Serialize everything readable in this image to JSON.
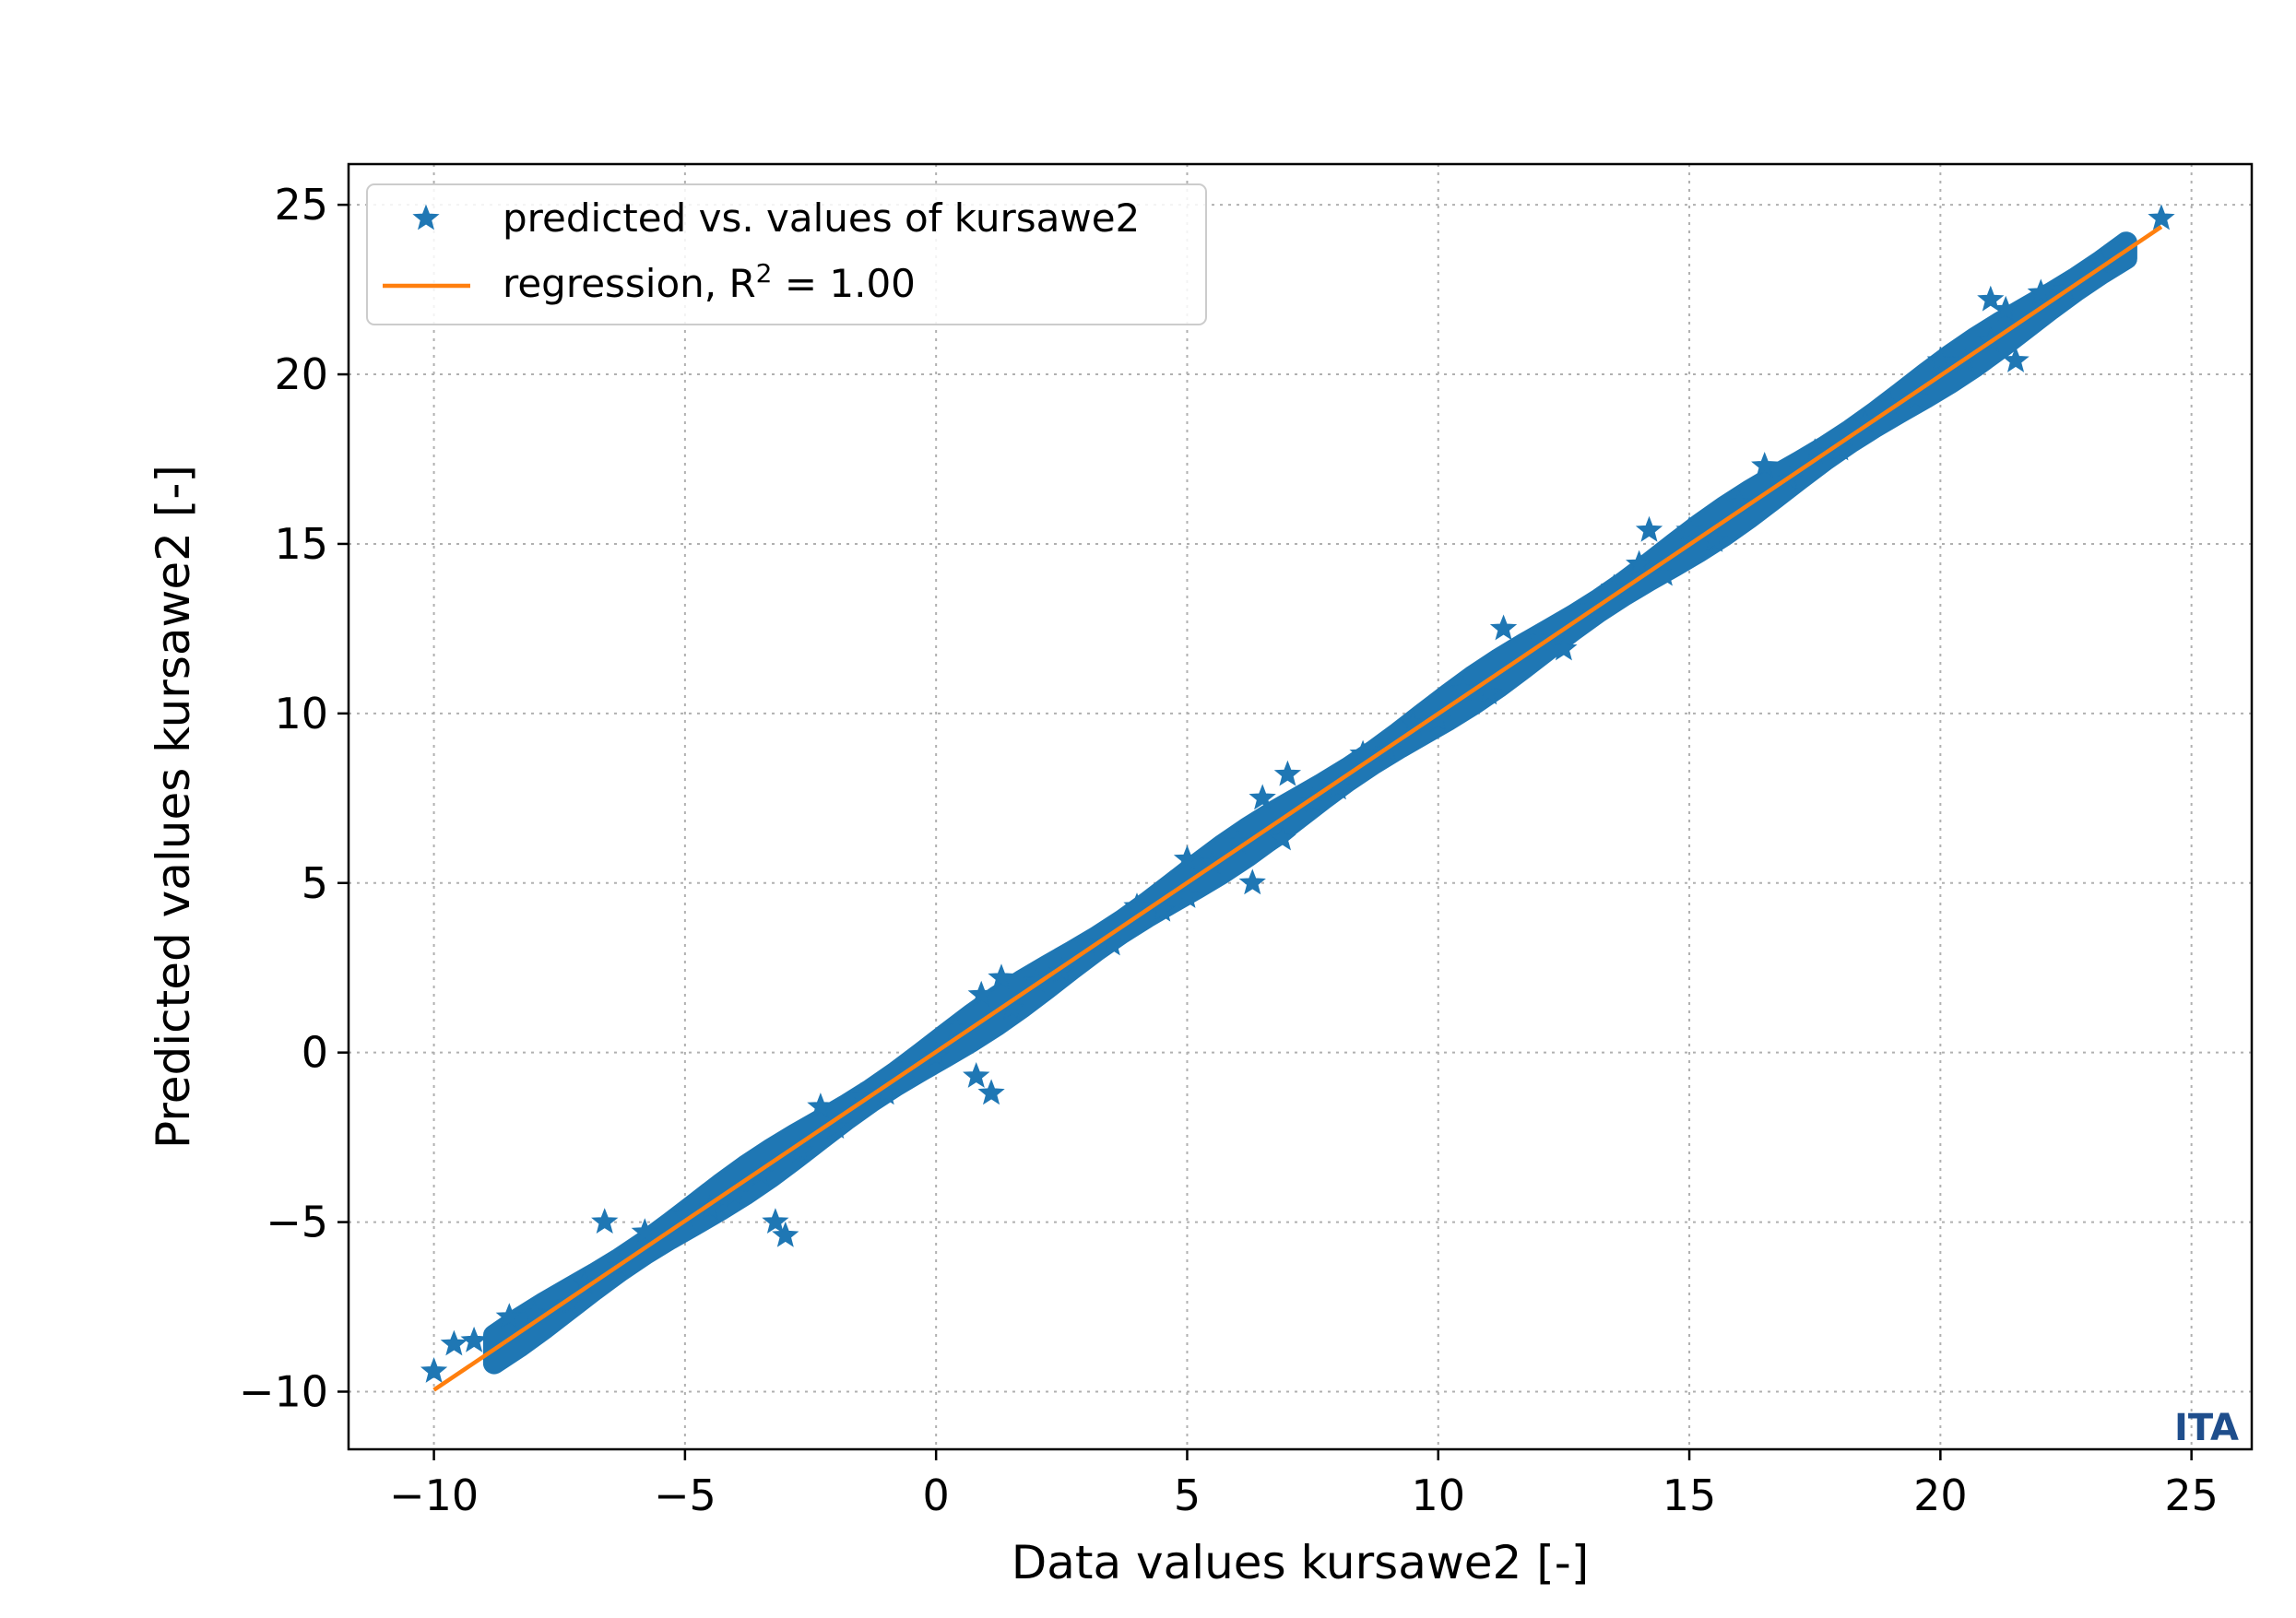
{
  "chart_data": {
    "type": "scatter",
    "title": "",
    "xlabel": "Data values kursawe2 [-]",
    "ylabel": "Predicted values kursawe2 [-]",
    "xlim": [
      -11.7,
      26.2
    ],
    "ylim": [
      -11.7,
      26.2
    ],
    "x_ticks": [
      -10,
      -5,
      0,
      5,
      10,
      15,
      20,
      25
    ],
    "y_ticks": [
      -10,
      -5,
      0,
      5,
      10,
      15,
      20,
      25
    ],
    "x_tick_labels": [
      "−10",
      "−5",
      "0",
      "5",
      "10",
      "15",
      "20",
      "25"
    ],
    "y_tick_labels": [
      "−10",
      "−5",
      "0",
      "5",
      "10",
      "15",
      "20",
      "25"
    ],
    "grid": true,
    "legend_position": "top-left",
    "series": [
      {
        "name": "predicted vs. values of kursawe2",
        "kind": "scatter",
        "marker": "star",
        "color": "#1f77b4",
        "points": [
          [
            -10.0,
            -9.4
          ],
          [
            -9.6,
            -8.6
          ],
          [
            -9.2,
            -8.5
          ],
          [
            -8.5,
            -7.8
          ],
          [
            -8.0,
            -7.7
          ],
          [
            -7.3,
            -7.4
          ],
          [
            -7.0,
            -6.8
          ],
          [
            -6.6,
            -5.0
          ],
          [
            -6.3,
            -6.3
          ],
          [
            -5.8,
            -5.3
          ],
          [
            -5.0,
            -4.8
          ],
          [
            -4.5,
            -4.6
          ],
          [
            -4.0,
            -4.2
          ],
          [
            -3.2,
            -5.0
          ],
          [
            -3.0,
            -5.4
          ],
          [
            -3.5,
            -3.6
          ],
          [
            -2.7,
            -2.9
          ],
          [
            -2.3,
            -1.6
          ],
          [
            -2.0,
            -2.2
          ],
          [
            -1.5,
            -1.3
          ],
          [
            -1.0,
            -1.2
          ],
          [
            -0.6,
            -0.4
          ],
          [
            0.0,
            -0.1
          ],
          [
            0.4,
            0.7
          ],
          [
            0.8,
            -0.7
          ],
          [
            1.1,
            -1.2
          ],
          [
            0.9,
            1.7
          ],
          [
            1.3,
            2.2
          ],
          [
            1.5,
            1.3
          ],
          [
            2.0,
            2.1
          ],
          [
            2.5,
            2.4
          ],
          [
            3.0,
            3.2
          ],
          [
            3.5,
            3.2
          ],
          [
            4.0,
            4.3
          ],
          [
            4.5,
            4.2
          ],
          [
            5.0,
            4.6
          ],
          [
            5.0,
            5.7
          ],
          [
            5.5,
            5.6
          ],
          [
            6.0,
            6.2
          ],
          [
            6.3,
            5.0
          ],
          [
            6.5,
            7.5
          ],
          [
            6.9,
            6.3
          ],
          [
            7.0,
            8.2
          ],
          [
            7.5,
            7.4
          ],
          [
            8.0,
            7.8
          ],
          [
            8.5,
            8.8
          ],
          [
            9.0,
            8.9
          ],
          [
            9.5,
            9.7
          ],
          [
            10.0,
            9.8
          ],
          [
            10.5,
            10.7
          ],
          [
            11.0,
            10.6
          ],
          [
            11.3,
            12.5
          ],
          [
            12.0,
            12.2
          ],
          [
            12.5,
            11.9
          ],
          [
            13.0,
            13.1
          ],
          [
            13.5,
            13.7
          ],
          [
            14.0,
            14.4
          ],
          [
            14.2,
            15.4
          ],
          [
            14.5,
            14.1
          ],
          [
            15.0,
            15.4
          ],
          [
            15.5,
            15.1
          ],
          [
            16.0,
            16.2
          ],
          [
            16.5,
            17.3
          ],
          [
            17.0,
            16.9
          ],
          [
            17.5,
            17.7
          ],
          [
            18.0,
            17.8
          ],
          [
            18.5,
            18.6
          ],
          [
            19.0,
            19.1
          ],
          [
            19.5,
            19.3
          ],
          [
            20.0,
            20.4
          ],
          [
            20.5,
            20.4
          ],
          [
            21.0,
            21.0
          ],
          [
            21.0,
            22.2
          ],
          [
            21.3,
            21.9
          ],
          [
            21.5,
            20.4
          ],
          [
            22.0,
            22.4
          ],
          [
            22.5,
            22.5
          ],
          [
            23.2,
            23.3
          ],
          [
            24.4,
            24.6
          ]
        ]
      },
      {
        "name": "regression, R² = 1.00",
        "kind": "line",
        "color": "#ff7f0e",
        "x": [
          -10.0,
          24.4
        ],
        "y": [
          -9.95,
          24.35
        ]
      }
    ]
  },
  "legend": {
    "scatter_label": "predicted vs. values of kursawe2",
    "line_label_prefix": "regression, R",
    "line_label_sup": "2",
    "line_label_suffix": " = 1.00"
  },
  "watermark": "ITA"
}
